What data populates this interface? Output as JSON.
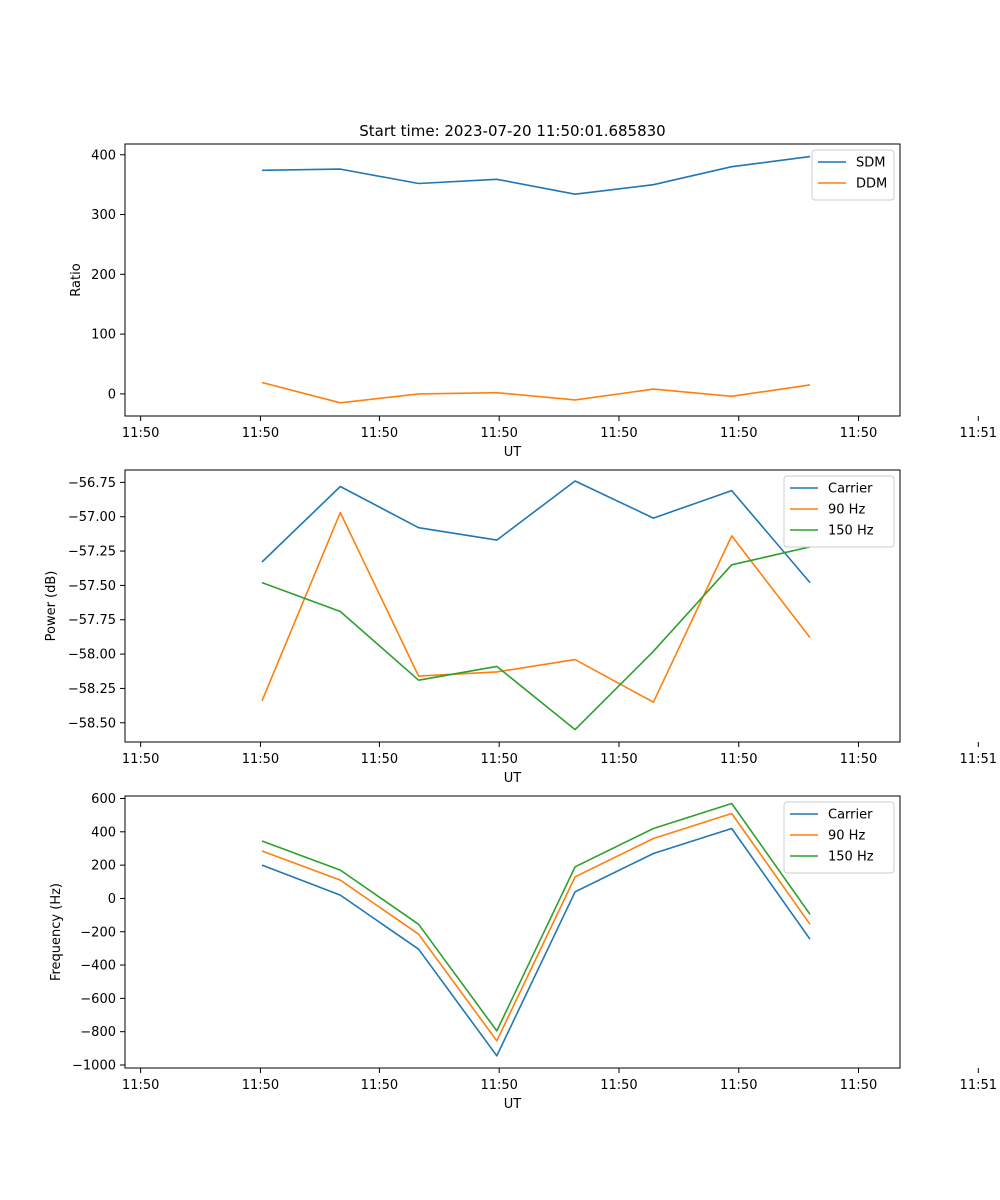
{
  "figure_title": "Start time: 2023-07-20 11:50:01.685830",
  "colors": {
    "blue": "#1f77b4",
    "orange": "#ff7f0e",
    "green": "#2ca02c"
  },
  "chart_data": [
    {
      "type": "line",
      "title": "Start time: 2023-07-20 11:50:01.685830",
      "xlabel": "UT",
      "ylabel": "Ratio",
      "x": [
        1,
        2,
        3,
        4,
        5,
        6,
        7,
        8
      ],
      "xlim": [
        -0.75,
        9.15
      ],
      "xticks": [
        {
          "v": -0.55,
          "label": "11:50"
        },
        {
          "v": 0.98,
          "label": "11:50"
        },
        {
          "v": 2.5,
          "label": "11:50"
        },
        {
          "v": 4.03,
          "label": "11:50"
        },
        {
          "v": 5.56,
          "label": "11:50"
        },
        {
          "v": 7.09,
          "label": "11:50"
        },
        {
          "v": 8.62,
          "label": "11:50"
        },
        {
          "v": 10.15,
          "label": "11:51"
        }
      ],
      "ylim": [
        -37,
        418
      ],
      "yticks": [
        0,
        100,
        200,
        300,
        400
      ],
      "legend": "top-right",
      "series": [
        {
          "name": "SDM",
          "color": "#1f77b4",
          "values": [
            374,
            376,
            352,
            359,
            334,
            350,
            380,
            397
          ]
        },
        {
          "name": "DDM",
          "color": "#ff7f0e",
          "values": [
            19,
            -15,
            0,
            2,
            -10,
            8,
            -4,
            15
          ]
        }
      ]
    },
    {
      "type": "line",
      "xlabel": "UT",
      "ylabel": "Power (dB)",
      "x": [
        1,
        2,
        3,
        4,
        5,
        6,
        7,
        8
      ],
      "xlim": [
        -0.75,
        9.15
      ],
      "xticks": [
        {
          "v": -0.55,
          "label": "11:50"
        },
        {
          "v": 0.98,
          "label": "11:50"
        },
        {
          "v": 2.5,
          "label": "11:50"
        },
        {
          "v": 4.03,
          "label": "11:50"
        },
        {
          "v": 5.56,
          "label": "11:50"
        },
        {
          "v": 7.09,
          "label": "11:50"
        },
        {
          "v": 8.62,
          "label": "11:50"
        },
        {
          "v": 10.15,
          "label": "11:51"
        }
      ],
      "ylim": [
        -58.64,
        -56.66
      ],
      "yticks": [
        -58.5,
        -58.25,
        -58.0,
        -57.75,
        -57.5,
        -57.25,
        -57.0,
        -56.75
      ],
      "ytick_labels": [
        "−58.50",
        "−58.25",
        "−58.00",
        "−57.75",
        "−57.50",
        "−57.25",
        "−57.00",
        "−56.75"
      ],
      "legend": "top-right",
      "series": [
        {
          "name": "Carrier",
          "color": "#1f77b4",
          "values": [
            -57.33,
            -56.78,
            -57.08,
            -57.17,
            -56.74,
            -57.01,
            -56.81,
            -57.48
          ]
        },
        {
          "name": "90 Hz",
          "color": "#ff7f0e",
          "values": [
            -58.34,
            -56.97,
            -58.16,
            -58.13,
            -58.04,
            -58.35,
            -57.14,
            -57.88
          ]
        },
        {
          "name": "150 Hz",
          "color": "#2ca02c",
          "values": [
            -57.48,
            -57.69,
            -58.19,
            -58.09,
            -58.55,
            -57.98,
            -57.35,
            -57.22
          ]
        }
      ]
    },
    {
      "type": "line",
      "xlabel": "UT",
      "ylabel": "Frequency (Hz)",
      "x": [
        1,
        2,
        3,
        4,
        5,
        6,
        7,
        8
      ],
      "xlim": [
        -0.75,
        9.15
      ],
      "xticks": [
        {
          "v": -0.55,
          "label": "11:50"
        },
        {
          "v": 0.98,
          "label": "11:50"
        },
        {
          "v": 2.5,
          "label": "11:50"
        },
        {
          "v": 4.03,
          "label": "11:50"
        },
        {
          "v": 5.56,
          "label": "11:50"
        },
        {
          "v": 7.09,
          "label": "11:50"
        },
        {
          "v": 8.62,
          "label": "11:50"
        },
        {
          "v": 10.15,
          "label": "11:51"
        }
      ],
      "ylim": [
        -1018,
        615
      ],
      "yticks": [
        -1000,
        -800,
        -600,
        -400,
        -200,
        0,
        200,
        400,
        600
      ],
      "ytick_labels": [
        "−1000",
        "−800",
        "−600",
        "−400",
        "−200",
        "0",
        "200",
        "400",
        "600"
      ],
      "legend": "top-right",
      "series": [
        {
          "name": "Carrier",
          "color": "#1f77b4",
          "values": [
            200,
            20,
            -305,
            -945,
            40,
            270,
            420,
            -245
          ]
        },
        {
          "name": "90 Hz",
          "color": "#ff7f0e",
          "values": [
            285,
            110,
            -215,
            -855,
            130,
            360,
            510,
            -155
          ]
        },
        {
          "name": "150 Hz",
          "color": "#2ca02c",
          "values": [
            345,
            170,
            -155,
            -795,
            190,
            420,
            570,
            -95
          ]
        }
      ]
    }
  ]
}
